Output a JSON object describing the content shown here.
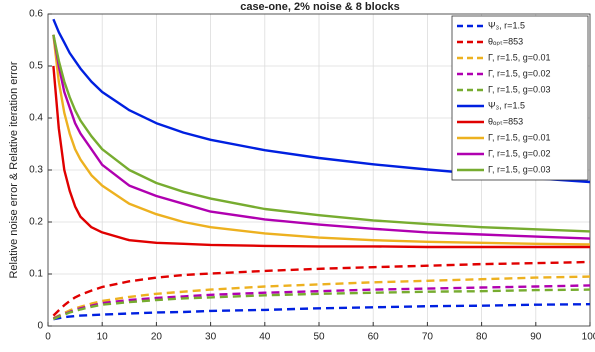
{
  "chart_data": {
    "type": "line",
    "title": "case-one, 2% noise & 8 blocks",
    "ylabel": "Relative noise error & Relative iteration error",
    "x": [
      1,
      2,
      3,
      4,
      5,
      6,
      8,
      10,
      15,
      20,
      25,
      30,
      40,
      50,
      60,
      70,
      80,
      90,
      100
    ],
    "xlim": [
      0,
      100
    ],
    "xticks": [
      0,
      10,
      20,
      30,
      40,
      50,
      60,
      70,
      80,
      90,
      100
    ],
    "ylim": [
      0,
      0.6
    ],
    "yticks": [
      0,
      0.1,
      0.2,
      0.3,
      0.4,
      0.5,
      0.6
    ],
    "grid": true,
    "legend": "top-right",
    "series": [
      {
        "name": "Ψ₃, r=1.5",
        "color": "#0020e0",
        "dashed": true,
        "values": [
          0.013,
          0.015,
          0.017,
          0.018,
          0.019,
          0.02,
          0.021,
          0.022,
          0.024,
          0.026,
          0.027,
          0.029,
          0.031,
          0.034,
          0.036,
          0.038,
          0.039,
          0.041,
          0.042
        ]
      },
      {
        "name": "θₒₚₜ=853",
        "color": "#e00000",
        "dashed": true,
        "values": [
          0.02,
          0.03,
          0.04,
          0.048,
          0.055,
          0.06,
          0.068,
          0.075,
          0.086,
          0.093,
          0.098,
          0.101,
          0.106,
          0.11,
          0.113,
          0.116,
          0.119,
          0.121,
          0.123
        ]
      },
      {
        "name": "Γ, r=1.5, g=0.01",
        "color": "#edb120",
        "dashed": true,
        "values": [
          0.015,
          0.02,
          0.025,
          0.03,
          0.034,
          0.037,
          0.043,
          0.048,
          0.056,
          0.062,
          0.066,
          0.07,
          0.076,
          0.08,
          0.084,
          0.087,
          0.09,
          0.093,
          0.095
        ]
      },
      {
        "name": "Γ, r=1.5, g=0.02",
        "color": "#b000b0",
        "dashed": true,
        "values": [
          0.014,
          0.019,
          0.023,
          0.027,
          0.031,
          0.034,
          0.039,
          0.044,
          0.05,
          0.054,
          0.057,
          0.06,
          0.064,
          0.067,
          0.07,
          0.072,
          0.074,
          0.076,
          0.078
        ]
      },
      {
        "name": "Γ, r=1.5, g=0.03",
        "color": "#77ac30",
        "dashed": true,
        "values": [
          0.013,
          0.018,
          0.022,
          0.026,
          0.029,
          0.032,
          0.037,
          0.041,
          0.046,
          0.05,
          0.053,
          0.055,
          0.059,
          0.062,
          0.064,
          0.066,
          0.067,
          0.069,
          0.07
        ]
      },
      {
        "name": "Ψ₃, r=1.5",
        "color": "#0020e0",
        "dashed": false,
        "values": [
          0.59,
          0.565,
          0.545,
          0.525,
          0.51,
          0.495,
          0.47,
          0.45,
          0.415,
          0.39,
          0.372,
          0.358,
          0.338,
          0.323,
          0.311,
          0.301,
          0.292,
          0.284,
          0.277
        ]
      },
      {
        "name": "θₒₚₜ=853",
        "color": "#e00000",
        "dashed": false,
        "values": [
          0.5,
          0.38,
          0.3,
          0.26,
          0.23,
          0.21,
          0.19,
          0.18,
          0.165,
          0.16,
          0.158,
          0.156,
          0.154,
          0.153,
          0.153,
          0.152,
          0.152,
          0.152,
          0.152
        ]
      },
      {
        "name": "Γ, r=1.5, g=0.01",
        "color": "#edb120",
        "dashed": false,
        "values": [
          0.56,
          0.47,
          0.41,
          0.37,
          0.34,
          0.32,
          0.29,
          0.27,
          0.235,
          0.215,
          0.2,
          0.19,
          0.178,
          0.17,
          0.165,
          0.162,
          0.16,
          0.158,
          0.157
        ]
      },
      {
        "name": "Γ, r=1.5, g=0.02",
        "color": "#b000b0",
        "dashed": false,
        "values": [
          0.56,
          0.5,
          0.45,
          0.42,
          0.39,
          0.37,
          0.34,
          0.31,
          0.27,
          0.25,
          0.235,
          0.22,
          0.205,
          0.195,
          0.187,
          0.18,
          0.176,
          0.172,
          0.168
        ]
      },
      {
        "name": "Γ, r=1.5, g=0.03",
        "color": "#77ac30",
        "dashed": false,
        "values": [
          0.56,
          0.51,
          0.47,
          0.44,
          0.415,
          0.395,
          0.365,
          0.34,
          0.3,
          0.275,
          0.258,
          0.245,
          0.225,
          0.213,
          0.203,
          0.196,
          0.19,
          0.186,
          0.182
        ]
      }
    ]
  }
}
